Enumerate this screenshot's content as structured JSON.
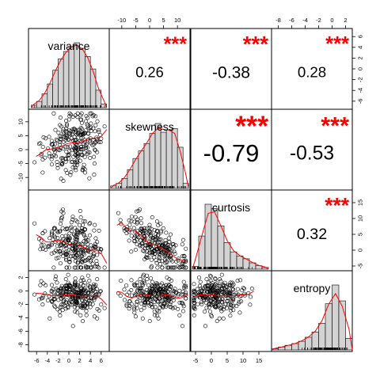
{
  "chart_data": {
    "type": "scatter",
    "variables": [
      "variance",
      "skewness",
      "curtosis",
      "entropy"
    ],
    "axis_ranges": {
      "variance": [
        -7.5,
        7.5
      ],
      "skewness": [
        -14.5,
        14.5
      ],
      "curtosis": [
        -6.5,
        19
      ],
      "entropy": [
        -9,
        3
      ]
    },
    "axis_ticks": {
      "variance": [
        -6,
        -4,
        -2,
        0,
        2,
        4,
        6
      ],
      "skewness": [
        -10,
        -5,
        0,
        5,
        10
      ],
      "curtosis": [
        -5,
        0,
        5,
        10,
        15
      ],
      "entropy": [
        -8,
        -6,
        -4,
        -2,
        0,
        2
      ]
    },
    "axis_tick_labels": {
      "variance": [
        "-6",
        "-4",
        "-2",
        "0",
        "2",
        "4",
        "6"
      ],
      "skewness": [
        "-10",
        "-5",
        "0",
        "5",
        "10"
      ],
      "curtosis": [
        "-5",
        "0",
        "5",
        "10",
        "15"
      ],
      "entropy": [
        "-8",
        "-6",
        "-4",
        "-2",
        "0",
        "2"
      ]
    },
    "correlations": [
      {
        "row": 1,
        "col": 2,
        "vars": [
          "variance",
          "skewness"
        ],
        "value": "0.26",
        "stars": "***"
      },
      {
        "row": 1,
        "col": 3,
        "vars": [
          "variance",
          "curtosis"
        ],
        "value": "-0.38",
        "stars": "***"
      },
      {
        "row": 1,
        "col": 4,
        "vars": [
          "variance",
          "entropy"
        ],
        "value": "0.28",
        "stars": "***"
      },
      {
        "row": 2,
        "col": 3,
        "vars": [
          "skewness",
          "curtosis"
        ],
        "value": "-0.79",
        "stars": "***"
      },
      {
        "row": 2,
        "col": 4,
        "vars": [
          "skewness",
          "entropy"
        ],
        "value": "-0.53",
        "stars": "***"
      },
      {
        "row": 3,
        "col": 4,
        "vars": [
          "curtosis",
          "entropy"
        ],
        "value": "0.32",
        "stars": "***"
      }
    ],
    "histograms": {
      "variance": {
        "bin_edges": [
          -7,
          -6,
          -5,
          -4,
          -3,
          -2,
          -1,
          0,
          1,
          2,
          3,
          4,
          5,
          6,
          7
        ],
        "counts": [
          4,
          10,
          22,
          38,
          60,
          78,
          90,
          98,
          104,
          95,
          82,
          62,
          28,
          6
        ]
      },
      "skewness": {
        "bin_edges": [
          -14,
          -12,
          -10,
          -8,
          -6,
          -4,
          -2,
          0,
          2,
          4,
          6,
          8,
          10,
          12,
          14
        ],
        "counts": [
          4,
          8,
          16,
          30,
          48,
          60,
          72,
          88,
          104,
          90,
          94,
          96,
          66,
          8
        ]
      },
      "curtosis": {
        "bin_edges": [
          -6,
          -4,
          -2,
          0,
          2,
          4,
          6,
          8,
          10,
          12,
          14,
          16,
          18
        ],
        "counts": [
          10,
          115,
          225,
          210,
          150,
          92,
          60,
          46,
          36,
          22,
          12,
          6
        ]
      },
      "entropy": {
        "bin_edges": [
          -9,
          -8,
          -7,
          -6,
          -5,
          -4,
          -3,
          -2,
          -1,
          0,
          1,
          2,
          3
        ],
        "counts": [
          4,
          10,
          16,
          22,
          30,
          44,
          62,
          92,
          160,
          225,
          170,
          40
        ]
      }
    },
    "grid": false,
    "legend": "none",
    "colors": {
      "points": "#000000",
      "smooth_line": "#ff0000",
      "stars": "#ff0000",
      "hist_fill": "#d3d3d3",
      "frame": "#000000",
      "text": "#000000"
    }
  }
}
